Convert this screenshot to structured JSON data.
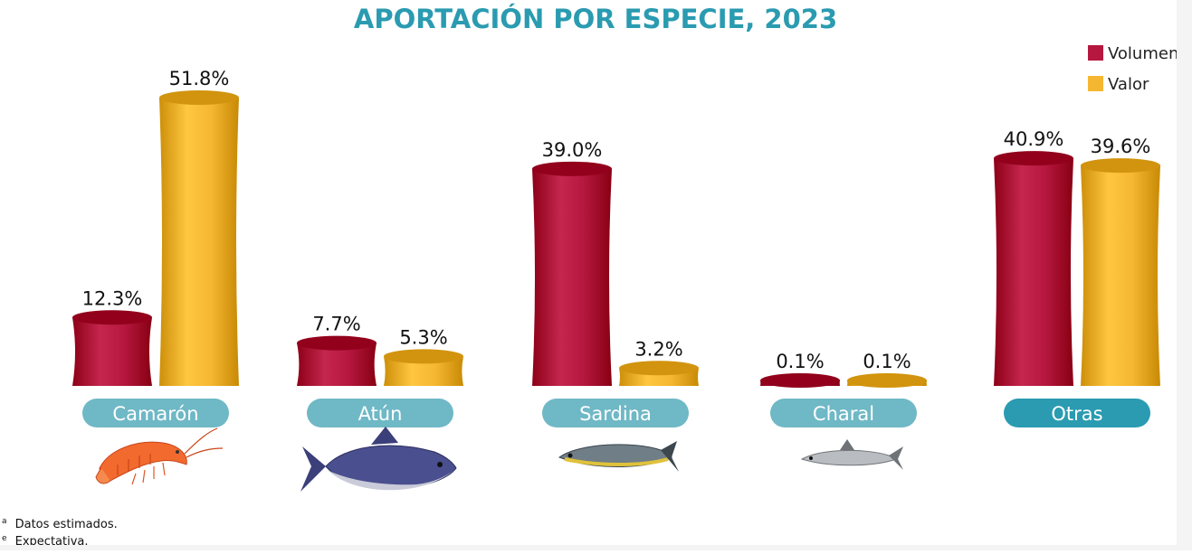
{
  "chart_data": {
    "type": "bar",
    "title": "APORTACIÓN POR ESPECIE, 2023",
    "categories": [
      "Camarón",
      "Atún",
      "Sardina",
      "Charal",
      "Otras"
    ],
    "series": [
      {
        "name": "Volumen",
        "color": "#b5173f",
        "values": [
          12.3,
          7.7,
          39.0,
          0.1,
          40.9
        ],
        "labels": [
          "12.3%",
          "7.7%",
          "39.0%",
          "0.1%",
          "40.9%"
        ]
      },
      {
        "name": "Valor",
        "color": "#f5b731",
        "values": [
          51.8,
          5.3,
          3.2,
          0.1,
          39.6
        ],
        "labels": [
          "51.8%",
          "5.3%",
          "3.2%",
          "0.1%",
          "39.6%"
        ]
      }
    ],
    "category_icons": [
      "shrimp-icon",
      "tuna-icon",
      "sardine-icon",
      "charal-icon",
      ""
    ],
    "category_pill_color": "#6fb8c6",
    "highlight_pill_color": "#2a9bb1",
    "highlight_category": "Otras",
    "legend_position": "top-right",
    "grid": false,
    "xlabel": "",
    "ylabel": "",
    "ylim": [
      0,
      55
    ]
  },
  "footnotes": [
    {
      "mark": "a",
      "text": "Datos estimados."
    },
    {
      "mark": "e",
      "text": "Expectativa."
    }
  ]
}
